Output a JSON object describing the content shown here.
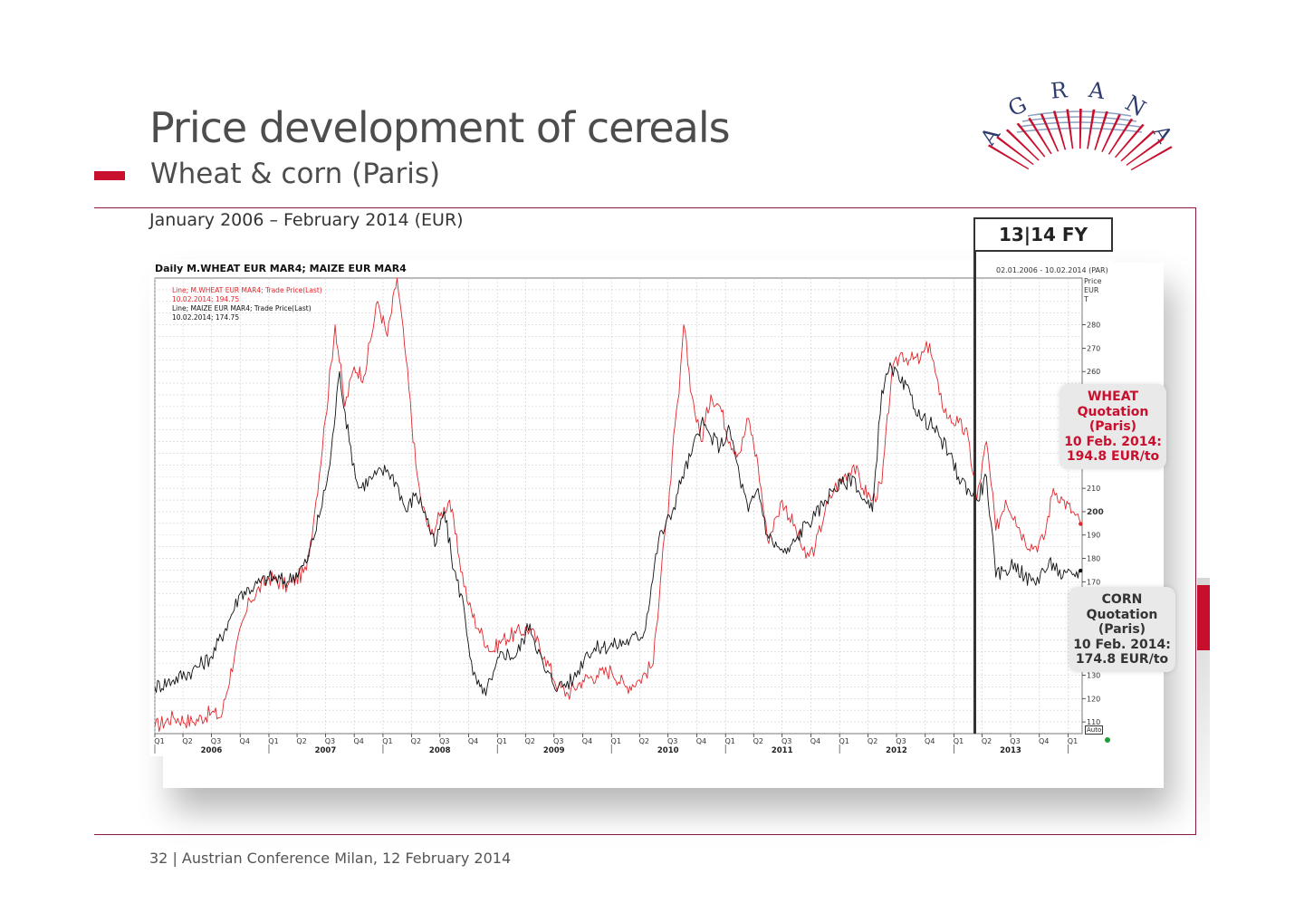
{
  "slide": {
    "title": "Price development of cereals",
    "subtitle": "Wheat & corn (Paris)",
    "period": "January 2006 – February 2014 (EUR)",
    "fy_label": "13|14 FY",
    "footer": "32  |  Austrian Conference Milan, 12 February 2014",
    "logo_text": "AGRANA",
    "colors": {
      "accent": "#c8102e",
      "wheat": "#e0282f",
      "corn": "#111111",
      "callout_bg": "#e9e9e9"
    }
  },
  "callouts": {
    "wheat": [
      "WHEAT",
      "Quotation",
      "(Paris)",
      "10 Feb. 2014:",
      "194.8 EUR/to"
    ],
    "corn": [
      "CORN",
      "Quotation",
      "(Paris)",
      "10 Feb. 2014:",
      "174.8 EUR/to"
    ]
  },
  "chart_data": {
    "type": "line",
    "title": "Daily M.WHEAT EUR MAR4; MAIZE EUR MAR4",
    "date_range": "02.01.2006 - 10.02.2014 (PAR)",
    "ylabel": [
      "Price",
      "EUR",
      "T"
    ],
    "auto_label": "Auto",
    "ylim": [
      105,
      300
    ],
    "y_ticks": [
      110,
      120,
      130,
      170,
      180,
      190,
      200,
      210,
      260,
      270,
      280
    ],
    "y_ticks_bold": [
      200
    ],
    "xlim": [
      "2006-01-01",
      "2014-02-15"
    ],
    "x_quarter_ticks": [
      "Q1",
      "Q2",
      "Q3",
      "Q4",
      "Q1",
      "Q2",
      "Q3",
      "Q4",
      "Q1",
      "Q2",
      "Q3",
      "Q4",
      "Q1",
      "Q2",
      "Q3",
      "Q4",
      "Q1",
      "Q2",
      "Q3",
      "Q4",
      "Q1",
      "Q2",
      "Q3",
      "Q4",
      "Q1",
      "Q2",
      "Q3",
      "Q4",
      "Q1",
      "Q2",
      "Q3",
      "Q4",
      "Q1"
    ],
    "x_year_labels": [
      "2006",
      "2007",
      "2008",
      "2009",
      "2010",
      "2011",
      "2012",
      "2013"
    ],
    "fy_marker_date": "2012-10-01",
    "grid": true,
    "legend": {
      "placement": "top-left",
      "entries": [
        {
          "text": "Line; M.WHEAT EUR MAR4; Trade Price(Last)",
          "sub": "10.02.2014; 194.75",
          "color": "#e0282f"
        },
        {
          "text": "Line; MAIZE EUR MAR4; Trade Price(Last)",
          "sub": "10.02.2014; 174.75",
          "color": "#111111"
        }
      ]
    },
    "series": [
      {
        "name": "M.WHEAT EUR MAR4",
        "color": "#e0282f",
        "x": [
          "2006-01-01",
          "2006-03-01",
          "2006-05-01",
          "2006-07-01",
          "2006-08-01",
          "2006-09-15",
          "2006-11-01",
          "2007-01-01",
          "2007-03-01",
          "2007-05-01",
          "2007-06-01",
          "2007-07-01",
          "2007-08-01",
          "2007-09-01",
          "2007-10-01",
          "2007-11-01",
          "2007-12-15",
          "2008-01-15",
          "2008-02-15",
          "2008-03-15",
          "2008-04-15",
          "2008-05-01",
          "2008-06-01",
          "2008-07-01",
          "2008-08-01",
          "2008-09-01",
          "2008-10-01",
          "2008-11-01",
          "2008-12-15",
          "2009-01-15",
          "2009-03-01",
          "2009-04-15",
          "2009-06-01",
          "2009-07-15",
          "2009-08-15",
          "2009-10-01",
          "2009-11-15",
          "2010-01-01",
          "2010-02-15",
          "2010-04-01",
          "2010-05-15",
          "2010-06-15",
          "2010-07-01",
          "2010-07-15",
          "2010-08-05",
          "2010-08-20",
          "2010-09-15",
          "2010-10-15",
          "2010-11-15",
          "2010-12-15",
          "2011-01-15",
          "2011-02-15",
          "2011-03-15",
          "2011-04-15",
          "2011-05-15",
          "2011-06-15",
          "2011-07-01",
          "2011-08-15",
          "2011-09-15",
          "2011-10-15",
          "2011-11-15",
          "2011-12-15",
          "2012-01-15",
          "2012-02-15",
          "2012-03-15",
          "2012-04-15",
          "2012-05-15",
          "2012-06-15",
          "2012-07-15",
          "2012-08-15",
          "2012-09-15",
          "2012-10-15",
          "2012-11-15",
          "2012-12-15",
          "2013-01-15",
          "2013-02-15",
          "2013-03-15",
          "2013-04-15",
          "2013-05-15",
          "2013-06-15",
          "2013-07-15",
          "2013-08-15",
          "2013-09-15",
          "2013-10-15",
          "2013-11-15",
          "2013-12-15",
          "2014-01-15",
          "2014-02-10"
        ],
        "values": [
          108,
          112,
          110,
          114,
          112,
          140,
          162,
          172,
          168,
          175,
          205,
          240,
          280,
          245,
          262,
          258,
          290,
          275,
          300,
          265,
          220,
          205,
          190,
          198,
          205,
          180,
          160,
          150,
          140,
          145,
          148,
          150,
          138,
          125,
          122,
          128,
          130,
          132,
          125,
          128,
          135,
          185,
          198,
          225,
          250,
          280,
          250,
          230,
          250,
          245,
          230,
          225,
          240,
          220,
          188,
          198,
          205,
          192,
          180,
          185,
          200,
          210,
          215,
          220,
          210,
          205,
          212,
          258,
          268,
          265,
          265,
          272,
          250,
          240,
          238,
          232,
          205,
          230,
          192,
          205,
          198,
          188,
          185,
          188,
          210,
          205,
          200,
          194.75
        ]
      },
      {
        "name": "MAIZE EUR MAR4",
        "color": "#111111",
        "x": [
          "2006-01-01",
          "2006-03-01",
          "2006-05-01",
          "2006-07-01",
          "2006-08-15",
          "2006-10-01",
          "2006-11-15",
          "2007-01-01",
          "2007-03-01",
          "2007-05-01",
          "2007-06-15",
          "2007-07-15",
          "2007-08-15",
          "2007-09-15",
          "2007-10-15",
          "2007-12-01",
          "2008-01-15",
          "2008-02-15",
          "2008-03-15",
          "2008-04-15",
          "2008-05-15",
          "2008-06-15",
          "2008-07-15",
          "2008-08-15",
          "2008-09-15",
          "2008-10-15",
          "2008-11-15",
          "2008-12-15",
          "2009-01-15",
          "2009-03-01",
          "2009-04-15",
          "2009-06-01",
          "2009-07-15",
          "2009-09-01",
          "2009-10-15",
          "2009-12-01",
          "2010-01-15",
          "2010-03-01",
          "2010-04-15",
          "2010-06-01",
          "2010-07-15",
          "2010-08-15",
          "2010-09-15",
          "2010-10-15",
          "2010-11-15",
          "2010-12-15",
          "2011-01-15",
          "2011-02-15",
          "2011-03-15",
          "2011-04-15",
          "2011-05-15",
          "2011-06-15",
          "2011-07-15",
          "2011-08-15",
          "2011-09-15",
          "2011-10-15",
          "2011-11-15",
          "2011-12-15",
          "2012-01-15",
          "2012-02-15",
          "2012-03-15",
          "2012-04-15",
          "2012-05-15",
          "2012-06-15",
          "2012-07-15",
          "2012-08-15",
          "2012-09-15",
          "2012-10-15",
          "2012-11-15",
          "2012-12-15",
          "2013-01-15",
          "2013-02-15",
          "2013-03-15",
          "2013-04-15",
          "2013-05-15",
          "2013-06-15",
          "2013-07-15",
          "2013-08-15",
          "2013-09-15",
          "2013-10-15",
          "2013-11-15",
          "2013-12-15",
          "2014-01-15",
          "2014-02-10"
        ],
        "values": [
          125,
          128,
          132,
          138,
          150,
          165,
          168,
          172,
          170,
          178,
          200,
          220,
          260,
          230,
          210,
          215,
          218,
          212,
          200,
          208,
          200,
          185,
          200,
          175,
          160,
          130,
          122,
          128,
          140,
          138,
          152,
          132,
          125,
          128,
          140,
          142,
          143,
          145,
          148,
          188,
          200,
          215,
          225,
          238,
          232,
          228,
          235,
          215,
          200,
          210,
          190,
          185,
          182,
          188,
          195,
          198,
          205,
          210,
          212,
          215,
          205,
          200,
          252,
          262,
          255,
          250,
          240,
          238,
          232,
          225,
          215,
          210,
          205,
          215,
          172,
          175,
          178,
          172,
          170,
          175,
          178,
          172,
          173,
          174.75
        ]
      }
    ]
  }
}
